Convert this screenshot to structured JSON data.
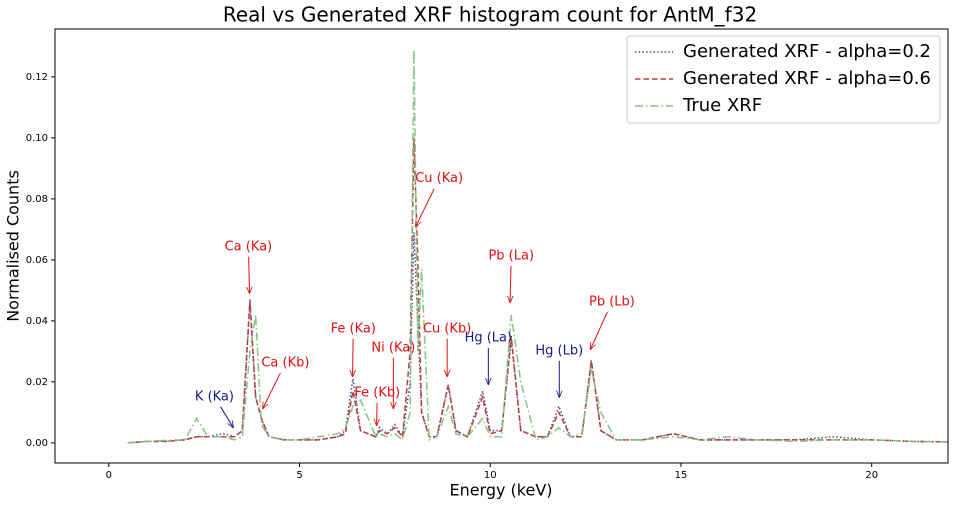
{
  "chart_data": {
    "type": "line",
    "title": "Real vs Generated XRF histogram count for AntM_f32",
    "x_label": "Energy (keV)",
    "y_label": "Normalised Counts",
    "x": [
      0.5,
      1,
      1.5,
      2,
      2.3,
      2.6,
      3.0,
      3.3,
      3.5,
      3.7,
      3.85,
      4.0,
      4.2,
      4.6,
      5,
      5.5,
      6.0,
      6.2,
      6.4,
      6.6,
      7.0,
      7.1,
      7.3,
      7.5,
      7.7,
      7.9,
      8.0,
      8.1,
      8.2,
      8.4,
      8.6,
      8.9,
      9.1,
      9.4,
      9.8,
      10.0,
      10.3,
      10.55,
      10.8,
      11.2,
      11.5,
      11.8,
      12.1,
      12.4,
      12.65,
      12.9,
      13.3,
      14,
      14.8,
      15.5,
      16.2,
      17,
      18,
      19,
      20,
      21,
      22
    ],
    "series": [
      {
        "name": "Generated XRF - alpha=0.2",
        "color": "#4b4b8c",
        "linestyle": "dotted",
        "values": [
          0,
          0.0005,
          0.0005,
          0.001,
          0.002,
          0.002,
          0.003,
          0.002,
          0.004,
          0.046,
          0.015,
          0.008,
          0.002,
          0.001,
          0.001,
          0.001,
          0.002,
          0.004,
          0.021,
          0.004,
          0.002,
          0.005,
          0.003,
          0.006,
          0.002,
          0.02,
          0.069,
          0.04,
          0.01,
          0.002,
          0.002,
          0.019,
          0.004,
          0.002,
          0.017,
          0.004,
          0.004,
          0.034,
          0.004,
          0.002,
          0.002,
          0.012,
          0.002,
          0.002,
          0.027,
          0.004,
          0.001,
          0.001,
          0.003,
          0.001,
          0.001,
          0.001,
          0.001,
          0.002,
          0.001,
          0.0005,
          0.0003
        ]
      },
      {
        "name": "Generated XRF - alpha=0.6",
        "color": "#b5403f",
        "linestyle": "dashed",
        "values": [
          0,
          0.0005,
          0.0005,
          0.001,
          0.002,
          0.002,
          0.002,
          0.002,
          0.004,
          0.047,
          0.015,
          0.008,
          0.002,
          0.001,
          0.001,
          0.001,
          0.002,
          0.003,
          0.017,
          0.004,
          0.002,
          0.004,
          0.003,
          0.005,
          0.002,
          0.03,
          0.1,
          0.06,
          0.01,
          0.002,
          0.002,
          0.019,
          0.004,
          0.002,
          0.015,
          0.003,
          0.004,
          0.035,
          0.004,
          0.002,
          0.002,
          0.01,
          0.002,
          0.002,
          0.027,
          0.004,
          0.001,
          0.001,
          0.003,
          0.001,
          0.001,
          0.001,
          0.001,
          0.001,
          0.001,
          0.0005,
          0.0003
        ]
      },
      {
        "name": "True XRF",
        "color": "#86c283",
        "linestyle": "dashdot",
        "values": [
          0,
          0.0005,
          0.0008,
          0.001,
          0.008,
          0.002,
          0.002,
          0.001,
          0.002,
          0.03,
          0.042,
          0.006,
          0.002,
          0.001,
          0.001,
          0.002,
          0.003,
          0.005,
          0.012,
          0.014,
          0.002,
          0.003,
          0.002,
          0.003,
          0.001,
          0.01,
          0.129,
          0.03,
          0.057,
          0.001,
          0.002,
          0.012,
          0.003,
          0.002,
          0.008,
          0.002,
          0.002,
          0.042,
          0.02,
          0.001,
          0.002,
          0.005,
          0.002,
          0.003,
          0.024,
          0.01,
          0.001,
          0.001,
          0.002,
          0.001,
          0.002,
          0.001,
          0.0005,
          0.001,
          0.001,
          0.0005,
          0.0003
        ]
      }
    ],
    "xlim": [
      -1.41,
      22
    ],
    "ylim": [
      -0.0066,
      0.1357
    ],
    "xticks": [
      0,
      5,
      10,
      15,
      20
    ],
    "yticks": [
      {
        "value": 0,
        "label": "0.00"
      },
      {
        "value": 0.02,
        "label": "0.02"
      },
      {
        "value": 0.04,
        "label": "0.04"
      },
      {
        "value": 0.06,
        "label": "0.06"
      },
      {
        "value": 0.08,
        "label": "0.08"
      },
      {
        "value": 0.1,
        "label": "0.10"
      },
      {
        "value": 0.12,
        "label": "0.12"
      }
    ],
    "legend": "upper right",
    "annotations": [
      {
        "text": "K (Ka)",
        "color": "#1a1a80",
        "xy": [
          3.27,
          0.0049
        ],
        "xytext": [
          2.77,
          0.0151
        ]
      },
      {
        "text": "Ca (Ka)",
        "color": "#e01010",
        "xy": [
          3.69,
          0.0489
        ],
        "xytext": [
          3.66,
          0.0643
        ]
      },
      {
        "text": "Ca (Kb)",
        "color": "#e01010",
        "xy": [
          4.03,
          0.0111
        ],
        "xytext": [
          4.63,
          0.0262
        ]
      },
      {
        "text": "Fe (Ka)",
        "color": "#e01010",
        "xy": [
          6.39,
          0.0216
        ],
        "xytext": [
          6.41,
          0.0374
        ]
      },
      {
        "text": "Fe (Kb)",
        "color": "#e01010",
        "xy": [
          7.02,
          0.0056
        ],
        "xytext": [
          7.04,
          0.0164
        ]
      },
      {
        "text": "Ni (Ka)",
        "color": "#e01010",
        "xy": [
          7.46,
          0.0111
        ],
        "xytext": [
          7.46,
          0.0311
        ]
      },
      {
        "text": "Cu (Ka)",
        "color": "#e01010",
        "xy": [
          8.04,
          0.0708
        ],
        "xytext": [
          8.66,
          0.0866
        ]
      },
      {
        "text": "Cu (Kb)",
        "color": "#e01010",
        "xy": [
          8.87,
          0.0216
        ],
        "xytext": [
          8.87,
          0.0374
        ]
      },
      {
        "text": "Hg (La)",
        "color": "#1a1a80",
        "xy": [
          9.95,
          0.019
        ],
        "xytext": [
          9.95,
          0.0344
        ]
      },
      {
        "text": "Pb (La)",
        "color": "#e01010",
        "xy": [
          10.52,
          0.0459
        ],
        "xytext": [
          10.55,
          0.0613
        ]
      },
      {
        "text": "Hg (Lb)",
        "color": "#1a1a80",
        "xy": [
          11.81,
          0.0148
        ],
        "xytext": [
          11.81,
          0.0302
        ]
      },
      {
        "text": "Pb (Lb)",
        "color": "#e01010",
        "xy": [
          12.62,
          0.0305
        ],
        "xytext": [
          13.19,
          0.0462
        ]
      }
    ]
  }
}
